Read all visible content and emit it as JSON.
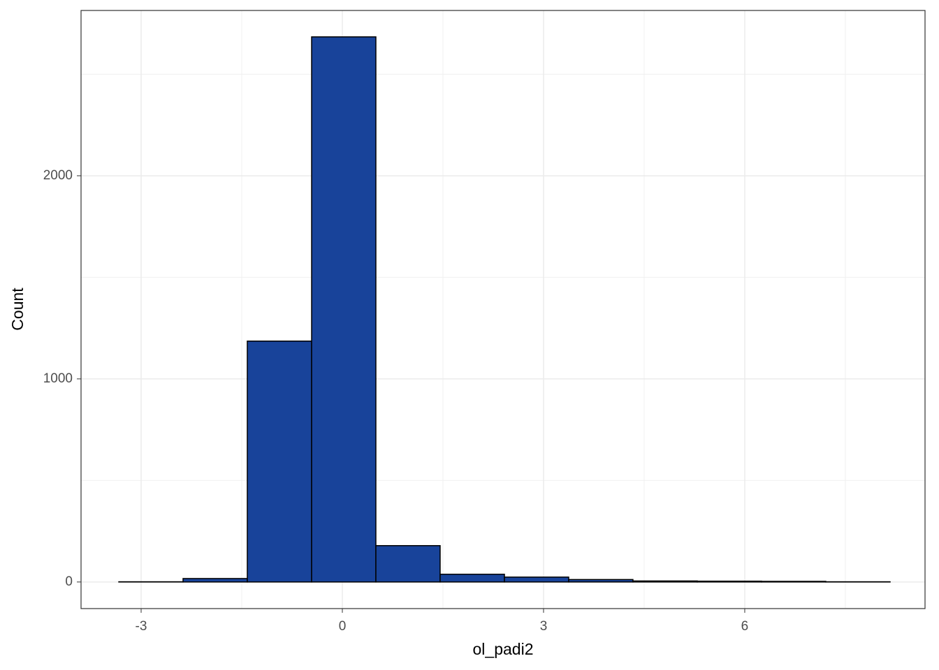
{
  "chart_data": {
    "type": "histogram",
    "x_label": "ol_padi2",
    "y_label": "Count",
    "bins": [
      -3.333,
      -2.375,
      -1.417,
      -0.458,
      0.5,
      1.458,
      2.417,
      3.375,
      4.333,
      5.292,
      6.25,
      7.208,
      8.167
    ],
    "values": [
      1,
      17,
      1186,
      2684,
      179,
      38,
      24,
      12,
      5,
      4,
      3,
      1
    ],
    "color": "#18439a",
    "xlim": [
      -3.896,
      8.688
    ],
    "ylim": [
      -131,
      2814
    ],
    "xticks": [
      -3,
      0,
      3,
      6
    ],
    "yticks": [
      0,
      1000,
      2000
    ],
    "x_minor_grid": [
      -1.5,
      1.5,
      4.5,
      7.5
    ],
    "y_minor_grid": [
      500,
      1500,
      2500
    ],
    "grid": true
  }
}
